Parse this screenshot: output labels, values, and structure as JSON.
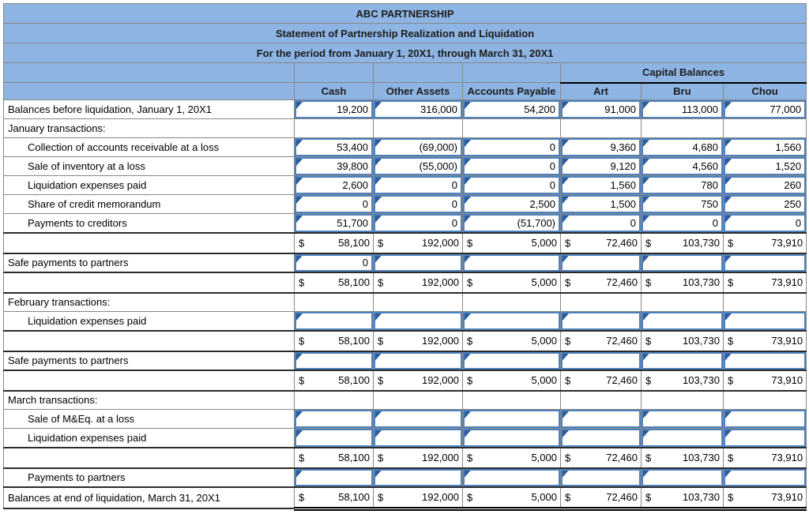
{
  "titles": {
    "company": "ABC PARTNERSHIP",
    "statement": "Statement of Partnership Realization and Liquidation",
    "period": "For the period from January 1, 20X1, through March 31, 20X1"
  },
  "header": {
    "capital_balances": "Capital Balances",
    "columns": [
      "Cash",
      "Other Assets",
      "Accounts Payable",
      "Art",
      "Bru",
      "Chou"
    ]
  },
  "format": {
    "dollar": "$"
  },
  "colors": {
    "header_bg": "#8db4e2",
    "input_border": "#4f81bd",
    "entered_marker": "#2b5c9b",
    "grid": "#878787"
  },
  "rows": [
    {
      "type": "input",
      "indent": false,
      "label": "Balances before liquidation, January 1, 20X1",
      "values": [
        "19,200",
        "316,000",
        "54,200",
        "91,000",
        "113,000",
        "77,000"
      ]
    },
    {
      "type": "section",
      "indent": false,
      "label": "January transactions:"
    },
    {
      "type": "input",
      "indent": true,
      "label": "Collection of accounts receivable at a loss",
      "values": [
        "53,400",
        "(69,000)",
        "0",
        "9,360",
        "4,680",
        "1,560"
      ]
    },
    {
      "type": "input",
      "indent": true,
      "label": "Sale of inventory at a loss",
      "values": [
        "39,800",
        "(55,000)",
        "0",
        "9,120",
        "4,560",
        "1,520"
      ]
    },
    {
      "type": "input",
      "indent": true,
      "label": "Liquidation expenses paid",
      "values": [
        "2,600",
        "0",
        "0",
        "1,560",
        "780",
        "260"
      ]
    },
    {
      "type": "input",
      "indent": true,
      "label": "Share of credit memorandum",
      "values": [
        "0",
        "0",
        "2,500",
        "1,500",
        "750",
        "250"
      ]
    },
    {
      "type": "input",
      "indent": true,
      "label": "Payments to creditors",
      "values": [
        "51,700",
        "0",
        "(51,700)",
        "0",
        "0",
        "0"
      ]
    },
    {
      "type": "total",
      "indent": false,
      "label": "",
      "values": [
        "58,100",
        "192,000",
        "5,000",
        "72,460",
        "103,730",
        "73,910"
      ]
    },
    {
      "type": "input",
      "indent": false,
      "label": "Safe payments to partners",
      "values": [
        "0",
        "",
        "",
        "",
        "",
        ""
      ]
    },
    {
      "type": "total",
      "indent": false,
      "label": "",
      "values": [
        "58,100",
        "192,000",
        "5,000",
        "72,460",
        "103,730",
        "73,910"
      ]
    },
    {
      "type": "section",
      "indent": false,
      "label": "February transactions:"
    },
    {
      "type": "input",
      "indent": true,
      "label": "Liquidation expenses paid",
      "values": [
        "",
        "",
        "",
        "",
        "",
        ""
      ]
    },
    {
      "type": "total",
      "indent": false,
      "label": "",
      "values": [
        "58,100",
        "192,000",
        "5,000",
        "72,460",
        "103,730",
        "73,910"
      ]
    },
    {
      "type": "input",
      "indent": false,
      "label": "Safe payments to partners",
      "values": [
        "",
        "",
        "",
        "",
        "",
        ""
      ]
    },
    {
      "type": "total",
      "indent": false,
      "label": "",
      "values": [
        "58,100",
        "192,000",
        "5,000",
        "72,460",
        "103,730",
        "73,910"
      ]
    },
    {
      "type": "section",
      "indent": false,
      "label": "March transactions:"
    },
    {
      "type": "input",
      "indent": true,
      "label": "Sale of M&Eq. at a loss",
      "values": [
        "",
        "",
        "",
        "",
        "",
        ""
      ]
    },
    {
      "type": "input",
      "indent": true,
      "label": "Liquidation expenses paid",
      "values": [
        "",
        "",
        "",
        "",
        "",
        ""
      ]
    },
    {
      "type": "total",
      "indent": false,
      "label": "",
      "values": [
        "58,100",
        "192,000",
        "5,000",
        "72,460",
        "103,730",
        "73,910"
      ]
    },
    {
      "type": "input",
      "indent": true,
      "label": "Payments to partners",
      "values": [
        "",
        "",
        "",
        "",
        "",
        ""
      ]
    },
    {
      "type": "final",
      "indent": false,
      "label": "Balances at end of liquidation, March 31, 20X1",
      "values": [
        "58,100",
        "192,000",
        "5,000",
        "72,460",
        "103,730",
        "73,910"
      ]
    }
  ]
}
